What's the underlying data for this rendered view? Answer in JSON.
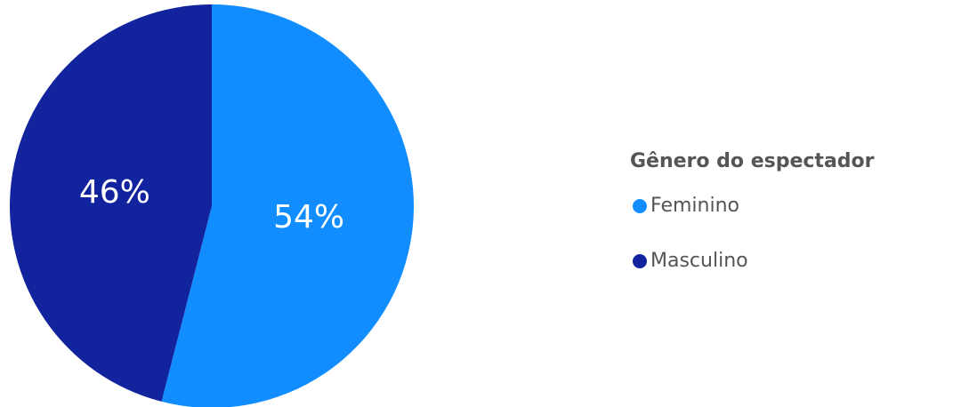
{
  "chart_data": {
    "type": "pie",
    "legend_title": "Gênero do espectador",
    "categories": [
      "Feminino",
      "Masculino"
    ],
    "values": [
      54,
      46
    ],
    "value_labels": [
      "54%",
      "46%"
    ],
    "colors": [
      "#118DFF",
      "#12239E"
    ],
    "legend": "right"
  }
}
